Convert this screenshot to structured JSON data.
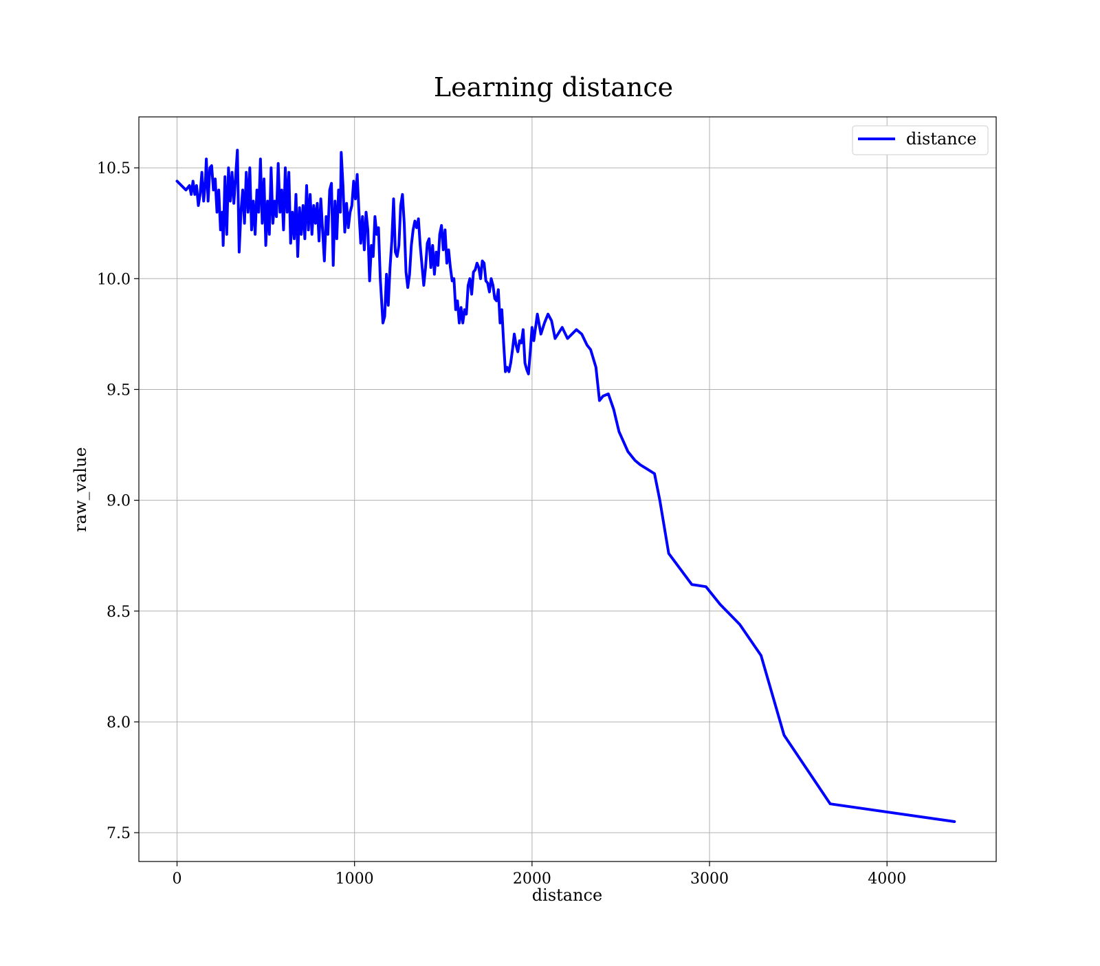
{
  "chart_data": {
    "type": "line",
    "title": "Learning distance",
    "xlabel": "distance",
    "ylabel": "raw_value",
    "xlim": [
      -215,
      4615
    ],
    "ylim": [
      7.37,
      10.73
    ],
    "xticks": [
      0,
      1000,
      2000,
      3000,
      4000
    ],
    "yticks": [
      7.5,
      8.0,
      8.5,
      9.0,
      9.5,
      10.0,
      10.5
    ],
    "xtick_labels": [
      "0",
      "1000",
      "2000",
      "3000",
      "4000"
    ],
    "ytick_labels": [
      "7.5",
      "8.0",
      "8.5",
      "9.0",
      "9.5",
      "10.0",
      "10.5"
    ],
    "grid": true,
    "legend": {
      "placement": "top-right",
      "entries": [
        "distance"
      ]
    },
    "series": [
      {
        "name": "distance",
        "color": "#0000ff",
        "points": [
          [
            0,
            10.44
          ],
          [
            50,
            10.4
          ],
          [
            70,
            10.42
          ],
          [
            80,
            10.38
          ],
          [
            90,
            10.44
          ],
          [
            100,
            10.38
          ],
          [
            110,
            10.42
          ],
          [
            120,
            10.33
          ],
          [
            130,
            10.38
          ],
          [
            140,
            10.48
          ],
          [
            150,
            10.35
          ],
          [
            160,
            10.44
          ],
          [
            165,
            10.54
          ],
          [
            175,
            10.35
          ],
          [
            185,
            10.5
          ],
          [
            195,
            10.51
          ],
          [
            205,
            10.4
          ],
          [
            215,
            10.45
          ],
          [
            225,
            10.3
          ],
          [
            235,
            10.4
          ],
          [
            245,
            10.22
          ],
          [
            255,
            10.3
          ],
          [
            260,
            10.15
          ],
          [
            270,
            10.46
          ],
          [
            280,
            10.2
          ],
          [
            290,
            10.5
          ],
          [
            300,
            10.35
          ],
          [
            310,
            10.48
          ],
          [
            320,
            10.34
          ],
          [
            330,
            10.46
          ],
          [
            340,
            10.58
          ],
          [
            350,
            10.12
          ],
          [
            360,
            10.3
          ],
          [
            370,
            10.4
          ],
          [
            380,
            10.25
          ],
          [
            390,
            10.48
          ],
          [
            400,
            10.3
          ],
          [
            410,
            10.5
          ],
          [
            420,
            10.22
          ],
          [
            430,
            10.35
          ],
          [
            440,
            10.2
          ],
          [
            450,
            10.4
          ],
          [
            460,
            10.3
          ],
          [
            470,
            10.54
          ],
          [
            480,
            10.25
          ],
          [
            490,
            10.45
          ],
          [
            500,
            10.15
          ],
          [
            510,
            10.35
          ],
          [
            520,
            10.2
          ],
          [
            530,
            10.5
          ],
          [
            540,
            10.25
          ],
          [
            550,
            10.35
          ],
          [
            560,
            10.28
          ],
          [
            570,
            10.52
          ],
          [
            580,
            10.3
          ],
          [
            590,
            10.4
          ],
          [
            600,
            10.22
          ],
          [
            610,
            10.5
          ],
          [
            620,
            10.3
          ],
          [
            630,
            10.48
          ],
          [
            640,
            10.16
          ],
          [
            650,
            10.3
          ],
          [
            660,
            10.18
          ],
          [
            670,
            10.38
          ],
          [
            680,
            10.1
          ],
          [
            690,
            10.32
          ],
          [
            700,
            10.2
          ],
          [
            710,
            10.33
          ],
          [
            720,
            10.18
          ],
          [
            730,
            10.42
          ],
          [
            740,
            10.22
          ],
          [
            750,
            10.38
          ],
          [
            760,
            10.2
          ],
          [
            770,
            10.33
          ],
          [
            780,
            10.25
          ],
          [
            790,
            10.34
          ],
          [
            800,
            10.17
          ],
          [
            810,
            10.36
          ],
          [
            820,
            10.22
          ],
          [
            830,
            10.08
          ],
          [
            840,
            10.28
          ],
          [
            850,
            10.2
          ],
          [
            860,
            10.4
          ],
          [
            870,
            10.43
          ],
          [
            880,
            10.06
          ],
          [
            890,
            10.35
          ],
          [
            900,
            10.18
          ],
          [
            910,
            10.4
          ],
          [
            920,
            10.3
          ],
          [
            925,
            10.57
          ],
          [
            935,
            10.42
          ],
          [
            945,
            10.21
          ],
          [
            955,
            10.34
          ],
          [
            965,
            10.23
          ],
          [
            975,
            10.3
          ],
          [
            985,
            10.33
          ],
          [
            995,
            10.44
          ],
          [
            1005,
            10.36
          ],
          [
            1015,
            10.47
          ],
          [
            1025,
            10.3
          ],
          [
            1035,
            10.16
          ],
          [
            1045,
            10.28
          ],
          [
            1055,
            10.13
          ],
          [
            1065,
            10.3
          ],
          [
            1075,
            10.22
          ],
          [
            1085,
            9.99
          ],
          [
            1095,
            10.15
          ],
          [
            1105,
            10.1
          ],
          [
            1115,
            10.28
          ],
          [
            1125,
            10.2
          ],
          [
            1135,
            10.23
          ],
          [
            1145,
            10.0
          ],
          [
            1160,
            9.8
          ],
          [
            1170,
            9.83
          ],
          [
            1180,
            10.02
          ],
          [
            1190,
            9.88
          ],
          [
            1200,
            10.05
          ],
          [
            1210,
            10.17
          ],
          [
            1220,
            10.36
          ],
          [
            1230,
            10.12
          ],
          [
            1240,
            10.1
          ],
          [
            1250,
            10.15
          ],
          [
            1260,
            10.33
          ],
          [
            1270,
            10.38
          ],
          [
            1280,
            10.25
          ],
          [
            1290,
            10.03
          ],
          [
            1300,
            9.96
          ],
          [
            1310,
            10.02
          ],
          [
            1320,
            10.15
          ],
          [
            1330,
            10.22
          ],
          [
            1340,
            10.26
          ],
          [
            1350,
            10.23
          ],
          [
            1360,
            10.27
          ],
          [
            1370,
            10.15
          ],
          [
            1380,
            10.06
          ],
          [
            1390,
            9.97
          ],
          [
            1400,
            10.05
          ],
          [
            1410,
            10.16
          ],
          [
            1420,
            10.18
          ],
          [
            1430,
            10.05
          ],
          [
            1440,
            10.15
          ],
          [
            1450,
            10.02
          ],
          [
            1460,
            10.12
          ],
          [
            1470,
            10.06
          ],
          [
            1480,
            10.2
          ],
          [
            1490,
            10.24
          ],
          [
            1500,
            10.13
          ],
          [
            1510,
            10.22
          ],
          [
            1520,
            10.07
          ],
          [
            1530,
            10.13
          ],
          [
            1540,
            10.05
          ],
          [
            1550,
            9.99
          ],
          [
            1560,
            10.0
          ],
          [
            1570,
            9.86
          ],
          [
            1580,
            9.9
          ],
          [
            1590,
            9.8
          ],
          [
            1600,
            9.87
          ],
          [
            1610,
            9.8
          ],
          [
            1620,
            9.86
          ],
          [
            1630,
            9.84
          ],
          [
            1640,
            9.97
          ],
          [
            1650,
            10.0
          ],
          [
            1660,
            9.93
          ],
          [
            1670,
            10.03
          ],
          [
            1680,
            10.04
          ],
          [
            1690,
            10.07
          ],
          [
            1700,
            10.05
          ],
          [
            1710,
            10.0
          ],
          [
            1720,
            10.08
          ],
          [
            1730,
            10.07
          ],
          [
            1740,
            9.99
          ],
          [
            1750,
            9.98
          ],
          [
            1760,
            9.94
          ],
          [
            1770,
            10.0
          ],
          [
            1780,
            9.97
          ],
          [
            1790,
            9.91
          ],
          [
            1800,
            9.9
          ],
          [
            1810,
            9.95
          ],
          [
            1820,
            9.8
          ],
          [
            1830,
            9.86
          ],
          [
            1840,
            9.71
          ],
          [
            1850,
            9.58
          ],
          [
            1860,
            9.6
          ],
          [
            1870,
            9.58
          ],
          [
            1880,
            9.62
          ],
          [
            1890,
            9.68
          ],
          [
            1900,
            9.75
          ],
          [
            1910,
            9.7
          ],
          [
            1920,
            9.67
          ],
          [
            1930,
            9.72
          ],
          [
            1940,
            9.71
          ],
          [
            1950,
            9.77
          ],
          [
            1960,
            9.62
          ],
          [
            1970,
            9.59
          ],
          [
            1980,
            9.57
          ],
          [
            1990,
            9.67
          ],
          [
            2000,
            9.78
          ],
          [
            2010,
            9.72
          ],
          [
            2030,
            9.84
          ],
          [
            2050,
            9.75
          ],
          [
            2070,
            9.8
          ],
          [
            2090,
            9.84
          ],
          [
            2110,
            9.81
          ],
          [
            2130,
            9.73
          ],
          [
            2170,
            9.78
          ],
          [
            2200,
            9.73
          ],
          [
            2250,
            9.77
          ],
          [
            2280,
            9.75
          ],
          [
            2310,
            9.7
          ],
          [
            2330,
            9.68
          ],
          [
            2360,
            9.6
          ],
          [
            2380,
            9.45
          ],
          [
            2400,
            9.47
          ],
          [
            2430,
            9.48
          ],
          [
            2460,
            9.41
          ],
          [
            2490,
            9.31
          ],
          [
            2540,
            9.22
          ],
          [
            2580,
            9.18
          ],
          [
            2610,
            9.16
          ],
          [
            2650,
            9.14
          ],
          [
            2690,
            9.12
          ],
          [
            2720,
            9.0
          ],
          [
            2770,
            8.76
          ],
          [
            2900,
            8.62
          ],
          [
            2980,
            8.61
          ],
          [
            3060,
            8.53
          ],
          [
            3170,
            8.44
          ],
          [
            3290,
            8.3
          ],
          [
            3420,
            7.94
          ],
          [
            3680,
            7.63
          ],
          [
            4380,
            7.55
          ]
        ]
      }
    ]
  }
}
